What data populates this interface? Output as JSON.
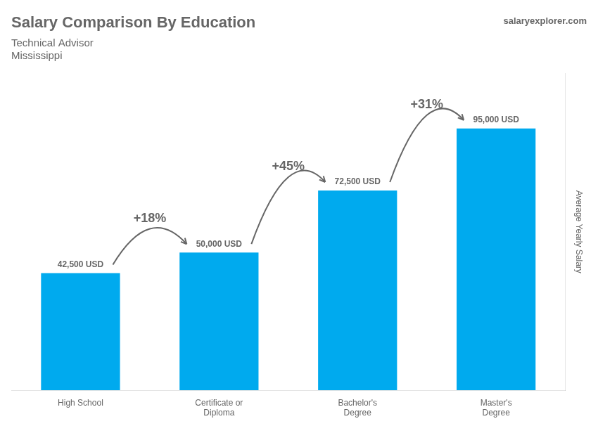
{
  "chart_data": {
    "type": "bar",
    "title": "Salary Comparison By Education",
    "subtitle": [
      "Technical Advisor",
      "Mississippi"
    ],
    "watermark": "salaryexplorer.com",
    "y_label": "Average Yearly Salary",
    "categories": [
      "High School",
      "Certificate or\nDiploma",
      "Bachelor's\nDegree",
      "Master's\nDegree"
    ],
    "values": [
      42500,
      50000,
      72500,
      95000
    ],
    "value_labels": [
      "42,500 USD",
      "50,000 USD",
      "72,500 USD",
      "95,000 USD"
    ],
    "data_labels": true,
    "annotations": [
      "+18%",
      "+45%",
      "+31%"
    ],
    "color": "#00aaee",
    "ylim": [
      0,
      115000
    ],
    "grid": false,
    "tick_labels": "x"
  }
}
